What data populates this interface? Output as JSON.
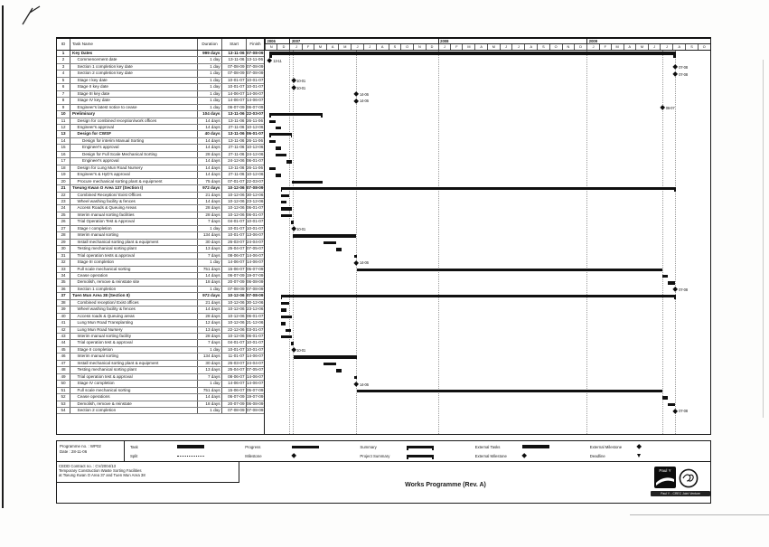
{
  "chart_data": {
    "type": "table",
    "title": "Works Programme (Rev. A)",
    "columns": [
      "ID",
      "Task Name",
      "Duration",
      "Start",
      "Finish"
    ],
    "timescale": {
      "domain_start": "01-11-06",
      "domain_end": "01-11-09",
      "years": [
        {
          "label": "2006",
          "months": [
            "N",
            "D"
          ]
        },
        {
          "label": "2007",
          "months": [
            "J",
            "F",
            "M",
            "A",
            "M",
            "J",
            "J",
            "A",
            "S",
            "O",
            "N",
            "D"
          ]
        },
        {
          "label": "2008",
          "months": [
            "J",
            "F",
            "M",
            "A",
            "M",
            "J",
            "J",
            "A",
            "S",
            "O",
            "N",
            "D"
          ]
        },
        {
          "label": "2009",
          "months": [
            "J",
            "F",
            "M",
            "A",
            "M",
            "J",
            "J",
            "A",
            "S",
            "O"
          ]
        }
      ]
    },
    "gridline_dates": [
      "01-01-07",
      "10-01-07",
      "01-01-08",
      "14-06-07",
      "01-01-09",
      "06-07-09",
      "07-08-09"
    ],
    "rows": [
      {
        "id": 1,
        "name": "Key Dates",
        "dur": "999 days",
        "start": "13-11-06",
        "fin": "07-08-09",
        "lvl": 0,
        "kind": "summary",
        "thick": true
      },
      {
        "id": 2,
        "name": "Commencement date",
        "dur": "1 day",
        "start": "13-11-06",
        "fin": "13-11-06",
        "lvl": 1,
        "kind": "milestone",
        "lbl": "13-11"
      },
      {
        "id": 3,
        "name": "Section 1 completion key date",
        "dur": "1 day",
        "start": "07-08-09",
        "fin": "07-08-09",
        "lvl": 1,
        "kind": "milestone",
        "lbl": "07-08"
      },
      {
        "id": 4,
        "name": "Section 2 completion key date",
        "dur": "1 day",
        "start": "07-08-09",
        "fin": "07-08-09",
        "lvl": 1,
        "kind": "milestone",
        "lbl": "07-08"
      },
      {
        "id": 5,
        "name": "Stage I key date",
        "dur": "1 day",
        "start": "10-01-07",
        "fin": "10-01-07",
        "lvl": 1,
        "kind": "milestone",
        "lbl": "10-01"
      },
      {
        "id": 6,
        "name": "Stage II key date",
        "dur": "1 day",
        "start": "10-01-07",
        "fin": "10-01-07",
        "lvl": 1,
        "kind": "milestone",
        "lbl": "10-01"
      },
      {
        "id": 7,
        "name": "Stage III key date",
        "dur": "1 day",
        "start": "14-06-07",
        "fin": "14-06-07",
        "lvl": 1,
        "kind": "milestone",
        "lbl": "14-06"
      },
      {
        "id": 8,
        "name": "Stage IV key date",
        "dur": "1 day",
        "start": "14-06-07",
        "fin": "14-06-07",
        "lvl": 1,
        "kind": "milestone",
        "lbl": "14-06"
      },
      {
        "id": 9,
        "name": "Engineer's latest notice to cease",
        "dur": "1 day",
        "start": "06-07-09",
        "fin": "06-07-09",
        "lvl": 1,
        "kind": "milestone",
        "lbl": "06-07"
      },
      {
        "id": 10,
        "name": "Preliminary",
        "dur": "104 days",
        "start": "13-11-06",
        "fin": "22-03-07",
        "lvl": 0,
        "kind": "summary"
      },
      {
        "id": 11,
        "name": "Design for combined reception/work offices",
        "dur": "14 days",
        "start": "13-11-06",
        "fin": "26-11-06",
        "lvl": 1,
        "kind": "task"
      },
      {
        "id": 12,
        "name": "Engineer's approval",
        "dur": "14 days",
        "start": "27-11-06",
        "fin": "10-12-06",
        "lvl": 1,
        "kind": "task"
      },
      {
        "id": 13,
        "name": "Design for CWSF",
        "dur": "40 days",
        "start": "13-11-06",
        "fin": "06-01-07",
        "lvl": 1,
        "kind": "summary"
      },
      {
        "id": 14,
        "name": "Design for interim Manual Sorting",
        "dur": "14 days",
        "start": "13-11-06",
        "fin": "26-11-06",
        "lvl": 2,
        "kind": "task"
      },
      {
        "id": 15,
        "name": "Engineer's approval",
        "dur": "14 days",
        "start": "27-11-06",
        "fin": "10-12-06",
        "lvl": 2,
        "kind": "task"
      },
      {
        "id": 16,
        "name": "Design for Full Scale Mechanical Sorting",
        "dur": "28 days",
        "start": "27-11-06",
        "fin": "24-12-06",
        "lvl": 2,
        "kind": "task"
      },
      {
        "id": 17,
        "name": "Engineer's approval",
        "dur": "14 days",
        "start": "24-12-06",
        "fin": "06-01-07",
        "lvl": 2,
        "kind": "task"
      },
      {
        "id": 18,
        "name": "Design for Lung Mun Road Nursery",
        "dur": "14 days",
        "start": "13-11-06",
        "fin": "26-11-06",
        "lvl": 1,
        "kind": "task"
      },
      {
        "id": 19,
        "name": "Engineer's & HyD's approval",
        "dur": "14 days",
        "start": "27-11-06",
        "fin": "10-12-06",
        "lvl": 1,
        "kind": "task"
      },
      {
        "id": 20,
        "name": "Procure mechanical sorting plant & equipment",
        "dur": "75 days",
        "start": "07-01-07",
        "fin": "22-03-07",
        "lvl": 1,
        "kind": "task"
      },
      {
        "id": 21,
        "name": "Tseung Kwan O Area 137 (Section I)",
        "dur": "972 days",
        "start": "10-12-06",
        "fin": "07-08-09",
        "lvl": 0,
        "kind": "summary"
      },
      {
        "id": 22,
        "name": "Combined Reception/ Exist Offices",
        "dur": "21 days",
        "start": "10-12-06",
        "fin": "30-12-06",
        "lvl": 1,
        "kind": "task"
      },
      {
        "id": 23,
        "name": "Wheel washing facility & fences",
        "dur": "14 days",
        "start": "10-12-06",
        "fin": "23-12-06",
        "lvl": 1,
        "kind": "task"
      },
      {
        "id": 24,
        "name": "Access Roads & Queuing Areas",
        "dur": "28 days",
        "start": "10-12-06",
        "fin": "06-01-07",
        "lvl": 1,
        "kind": "task"
      },
      {
        "id": 25,
        "name": "Interim manual sorting facilities",
        "dur": "28 days",
        "start": "10-12-06",
        "fin": "06-01-07",
        "lvl": 1,
        "kind": "task"
      },
      {
        "id": 26,
        "name": "Trial Operation Test & Approval",
        "dur": "7 days",
        "start": "04-01-07",
        "fin": "10-01-07",
        "lvl": 1,
        "kind": "task"
      },
      {
        "id": 27,
        "name": "Stage I completion",
        "dur": "1 day",
        "start": "10-01-07",
        "fin": "10-01-07",
        "lvl": 1,
        "kind": "milestone",
        "lbl": "10-01"
      },
      {
        "id": 28,
        "name": "Interim manual sorting",
        "dur": "134 days",
        "start": "10-01-07",
        "fin": "13-06-07",
        "lvl": 1,
        "kind": "task"
      },
      {
        "id": 29,
        "name": "Install mechanical sorting plant & equipment",
        "dur": "30 days",
        "start": "26-03-07",
        "fin": "24-04-07",
        "lvl": 1,
        "kind": "task"
      },
      {
        "id": 30,
        "name": "Testing mechanical sorting plant",
        "dur": "13 days",
        "start": "25-04-07",
        "fin": "07-05-07",
        "lvl": 1,
        "kind": "task"
      },
      {
        "id": 31,
        "name": "Trial operation tests & approval",
        "dur": "7 days",
        "start": "08-06-07",
        "fin": "14-06-07",
        "lvl": 1,
        "kind": "task"
      },
      {
        "id": 32,
        "name": "Stage III completion",
        "dur": "1 day",
        "start": "14-06-07",
        "fin": "14-06-07",
        "lvl": 1,
        "kind": "milestone",
        "lbl": "14-06"
      },
      {
        "id": 33,
        "name": "Full scale mechanical sorting",
        "dur": "751 days",
        "start": "15-06-07",
        "fin": "05-07-09",
        "lvl": 1,
        "kind": "task"
      },
      {
        "id": 34,
        "name": "Cease operation",
        "dur": "14 days",
        "start": "06-07-09",
        "fin": "19-07-09",
        "lvl": 1,
        "kind": "task"
      },
      {
        "id": 35,
        "name": "Demolish, remove & reinstate site",
        "dur": "18 days",
        "start": "20-07-09",
        "fin": "06-08-09",
        "lvl": 1,
        "kind": "task"
      },
      {
        "id": 36,
        "name": "Section 1 completion",
        "dur": "1 day",
        "start": "07-08-09",
        "fin": "07-08-09",
        "lvl": 1,
        "kind": "milestone",
        "lbl": "07-08"
      },
      {
        "id": 37,
        "name": "Tuen Mun Area 38 (Section II)",
        "dur": "972 days",
        "start": "10-12-06",
        "fin": "07-08-09",
        "lvl": 0,
        "kind": "summary"
      },
      {
        "id": 38,
        "name": "Combined reception/ Exist offices",
        "dur": "21 days",
        "start": "10-12-06",
        "fin": "30-12-06",
        "lvl": 1,
        "kind": "task"
      },
      {
        "id": 39,
        "name": "Wheel washing facility & fences",
        "dur": "14 days",
        "start": "10-12-06",
        "fin": "23-12-06",
        "lvl": 1,
        "kind": "task"
      },
      {
        "id": 40,
        "name": "Access roads & Queuing areas",
        "dur": "28 days",
        "start": "10-12-06",
        "fin": "06-01-07",
        "lvl": 1,
        "kind": "task"
      },
      {
        "id": 41,
        "name": "Lung Mun Road Transplanting",
        "dur": "12 days",
        "start": "10-12-06",
        "fin": "21-12-06",
        "lvl": 1,
        "kind": "task"
      },
      {
        "id": 42,
        "name": "Lung Mun Road Nursery",
        "dur": "13 days",
        "start": "22-12-06",
        "fin": "03-01-07",
        "lvl": 1,
        "kind": "task"
      },
      {
        "id": 43,
        "name": "Interim manual sorting facility",
        "dur": "28 days",
        "start": "10-12-06",
        "fin": "06-01-07",
        "lvl": 1,
        "kind": "task"
      },
      {
        "id": 44,
        "name": "Trial operation test & approval",
        "dur": "7 days",
        "start": "04-01-07",
        "fin": "10-01-07",
        "lvl": 1,
        "kind": "task"
      },
      {
        "id": 45,
        "name": "Stage II completion",
        "dur": "1 day",
        "start": "10-01-07",
        "fin": "10-01-07",
        "lvl": 1,
        "kind": "milestone",
        "lbl": "10-01"
      },
      {
        "id": 46,
        "name": "Interim manual sorting",
        "dur": "134 days",
        "start": "11-01-07",
        "fin": "14-06-07",
        "lvl": 1,
        "kind": "task"
      },
      {
        "id": 47,
        "name": "Install mechanical sorting plant & equipment",
        "dur": "30 days",
        "start": "26-03-07",
        "fin": "24-04-07",
        "lvl": 1,
        "kind": "task"
      },
      {
        "id": 48,
        "name": "Testing mechanical sorting plant",
        "dur": "13 days",
        "start": "25-04-07",
        "fin": "07-05-07",
        "lvl": 1,
        "kind": "task"
      },
      {
        "id": 49,
        "name": "Trial operation test & approval",
        "dur": "7 days",
        "start": "08-06-07",
        "fin": "14-06-07",
        "lvl": 1,
        "kind": "task"
      },
      {
        "id": 50,
        "name": "Stage IV completion",
        "dur": "1 day",
        "start": "14-06-07",
        "fin": "14-06-07",
        "lvl": 1,
        "kind": "milestone",
        "lbl": "14-06"
      },
      {
        "id": 51,
        "name": "Full scale mechanical sorting",
        "dur": "751 days",
        "start": "15-06-07",
        "fin": "05-07-09",
        "lvl": 1,
        "kind": "task"
      },
      {
        "id": 52,
        "name": "Cease operations",
        "dur": "14 days",
        "start": "06-07-09",
        "fin": "19-07-09",
        "lvl": 1,
        "kind": "task"
      },
      {
        "id": 53,
        "name": "Demolish, remove & reinstate",
        "dur": "18 days",
        "start": "20-07-09",
        "fin": "06-08-09",
        "lvl": 1,
        "kind": "task"
      },
      {
        "id": 54,
        "name": "Section 2 completion",
        "dur": "1 day",
        "start": "07-08-09",
        "fin": "07-08-09",
        "lvl": 1,
        "kind": "milestone",
        "lbl": "07-08"
      }
    ]
  },
  "footer": {
    "programme_no": "Programme no. : WP02",
    "date": "Date : 28-11-06",
    "legend": [
      {
        "label": "Task",
        "shape": "bar"
      },
      {
        "label": "Split",
        "shape": "split"
      },
      {
        "label": "Progress",
        "shape": "progress"
      },
      {
        "label": "Milestone",
        "shape": "milestone"
      },
      {
        "label": "Summary",
        "shape": "summary"
      },
      {
        "label": "Project Summary",
        "shape": "project-summary"
      },
      {
        "label": "External Tasks",
        "shape": "bar"
      },
      {
        "label": "External Milestone",
        "shape": "milestone"
      },
      {
        "label": "External Milestone",
        "shape": "milestone"
      },
      {
        "label": "Deadline",
        "shape": "deadline"
      }
    ],
    "contract_lines": [
      "CEDD Contract no. : CV/2004/13",
      "Temporary Construction Waste Sorting Facilities",
      "at Tseung Kwan O Area 37 and Tuen Mun Area 38"
    ],
    "title": "Works Programme (Rev. A)",
    "logo_text": "Paul Y",
    "logo_caption": "Paul Y. - CREC Joint Venture"
  }
}
